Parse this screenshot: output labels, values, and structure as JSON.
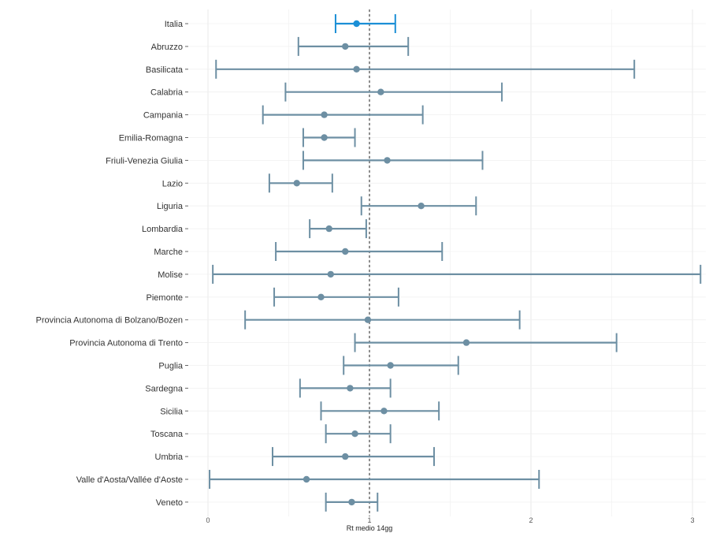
{
  "chart_data": {
    "type": "forest",
    "xlabel": "Rt medio 14gg",
    "ylabel": "",
    "xlim": [
      0,
      3.05
    ],
    "x_ticks": [
      0,
      1,
      2,
      3
    ],
    "x_tick_labels": [
      "0",
      "1",
      "2",
      "3"
    ],
    "reference_line": 1,
    "grid": true,
    "colors": {
      "highlight": "#1b8fd6",
      "default": "#6d8fa3",
      "reference": "#444444",
      "grid": "#e8e8e8"
    },
    "rows": [
      {
        "label": "Italia",
        "mean": 0.92,
        "lower": 0.79,
        "upper": 1.16,
        "highlight": true
      },
      {
        "label": "Abruzzo",
        "mean": 0.85,
        "lower": 0.56,
        "upper": 1.24
      },
      {
        "label": "Basilicata",
        "mean": 0.92,
        "lower": 0.05,
        "upper": 2.64
      },
      {
        "label": "Calabria",
        "mean": 1.07,
        "lower": 0.48,
        "upper": 1.82
      },
      {
        "label": "Campania",
        "mean": 0.72,
        "lower": 0.34,
        "upper": 1.33
      },
      {
        "label": "Emilia-Romagna",
        "mean": 0.72,
        "lower": 0.59,
        "upper": 0.91
      },
      {
        "label": "Friuli-Venezia Giulia",
        "mean": 1.11,
        "lower": 0.59,
        "upper": 1.7
      },
      {
        "label": "Lazio",
        "mean": 0.55,
        "lower": 0.38,
        "upper": 0.77
      },
      {
        "label": "Liguria",
        "mean": 1.32,
        "lower": 0.95,
        "upper": 1.66
      },
      {
        "label": "Lombardia",
        "mean": 0.75,
        "lower": 0.63,
        "upper": 0.98
      },
      {
        "label": "Marche",
        "mean": 0.85,
        "lower": 0.42,
        "upper": 1.45
      },
      {
        "label": "Molise",
        "mean": 0.76,
        "lower": 0.03,
        "upper": 3.05
      },
      {
        "label": "Piemonte",
        "mean": 0.7,
        "lower": 0.41,
        "upper": 1.18
      },
      {
        "label": "Provincia Autonoma di Bolzano/Bozen",
        "mean": 0.99,
        "lower": 0.23,
        "upper": 1.93
      },
      {
        "label": "Provincia Autonoma di Trento",
        "mean": 1.6,
        "lower": 0.91,
        "upper": 2.53
      },
      {
        "label": "Puglia",
        "mean": 1.13,
        "lower": 0.84,
        "upper": 1.55
      },
      {
        "label": "Sardegna",
        "mean": 0.88,
        "lower": 0.57,
        "upper": 1.13
      },
      {
        "label": "Sicilia",
        "mean": 1.09,
        "lower": 0.7,
        "upper": 1.43
      },
      {
        "label": "Toscana",
        "mean": 0.91,
        "lower": 0.73,
        "upper": 1.13
      },
      {
        "label": "Umbria",
        "mean": 0.85,
        "lower": 0.4,
        "upper": 1.4
      },
      {
        "label": "Valle d'Aosta/Vallée d'Aoste",
        "mean": 0.61,
        "lower": 0.01,
        "upper": 2.05
      },
      {
        "label": "Veneto",
        "mean": 0.89,
        "lower": 0.73,
        "upper": 1.05
      }
    ]
  }
}
